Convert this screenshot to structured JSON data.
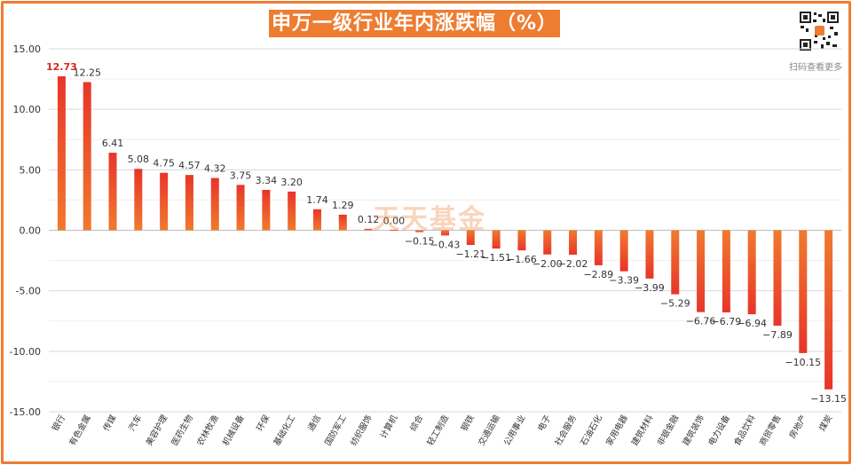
{
  "title": "申万一级行业年内涨跌幅（%）",
  "watermark": "天天基金",
  "qr_caption": "扫码查看更多",
  "colors": {
    "accent": "#ed7d31",
    "bar_top": "#f0752d",
    "bar_bottom": "#e8352a",
    "highlight": "#e02020"
  },
  "chart_data": {
    "type": "bar",
    "title": "申万一级行业年内涨跌幅（%）",
    "xlabel": "",
    "ylabel": "",
    "ylim": [
      -15,
      15
    ],
    "yticks": [
      "15.00",
      "10.00",
      "5.00",
      "0.00",
      "-5.00",
      "-10.00",
      "-15.00"
    ],
    "grid": true,
    "categories": [
      "银行",
      "有色金属",
      "传媒",
      "汽车",
      "美容护理",
      "医药生物",
      "农林牧渔",
      "机械设备",
      "环保",
      "基础化工",
      "通信",
      "国防军工",
      "纺织服饰",
      "计算机",
      "综合",
      "轻工制造",
      "钢铁",
      "交通运输",
      "公用事业",
      "电子",
      "社会服务",
      "石油石化",
      "家用电器",
      "建筑材料",
      "非银金融",
      "建筑装饰",
      "电力设备",
      "食品饮料",
      "商贸零售",
      "房地产",
      "煤炭"
    ],
    "values": [
      12.73,
      12.25,
      6.41,
      5.08,
      4.75,
      4.57,
      4.32,
      3.75,
      3.34,
      3.2,
      1.74,
      1.29,
      0.12,
      0.0,
      -0.15,
      -0.43,
      -1.21,
      -1.51,
      -1.66,
      -2.0,
      -2.02,
      -2.89,
      -3.39,
      -3.99,
      -5.29,
      -6.76,
      -6.79,
      -6.94,
      -7.89,
      -10.15,
      -13.15
    ],
    "labels": [
      "12.73",
      "12.25",
      "6.41",
      "5.08",
      "4.75",
      "4.57",
      "4.32",
      "3.75",
      "3.34",
      "3.20",
      "1.74",
      "1.29",
      "0.12",
      "0.00",
      "−0.15",
      "−0.43",
      "−1.21",
      "−1.51",
      "−1.66",
      "−2.00",
      "−2.02",
      "−2.89",
      "−3.39",
      "−3.99",
      "−5.29",
      "−6.76",
      "−6.79",
      "−6.94",
      "−7.89",
      "−10.15",
      "−13.15"
    ],
    "highlight_index": 0
  }
}
